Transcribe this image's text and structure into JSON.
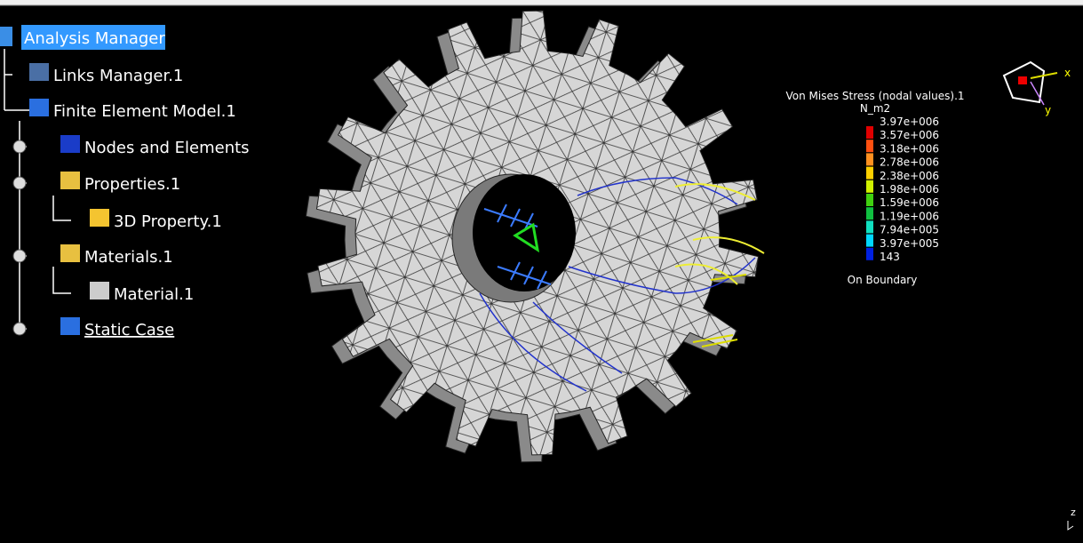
{
  "tree": {
    "root": "Analysis Manager",
    "items": [
      "Links Manager.1",
      "Finite Element Model.1",
      "Nodes and Elements",
      "Properties.1",
      "3D Property.1",
      "Materials.1",
      "Material.1",
      "Static Case"
    ]
  },
  "legend": {
    "title": "Von Mises Stress (nodal values).1",
    "unit": "N_m2",
    "levels": [
      "3.97e+006",
      "3.57e+006",
      "3.18e+006",
      "2.78e+006",
      "2.38e+006",
      "1.98e+006",
      "1.59e+006",
      "1.19e+006",
      "7.94e+005",
      "3.97e+005",
      "143"
    ],
    "note": "On Boundary"
  },
  "compass": {
    "x": "x",
    "y": "y",
    "z": "z"
  }
}
